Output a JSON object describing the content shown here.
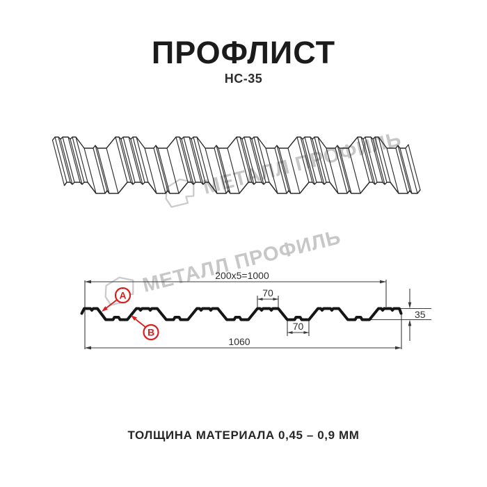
{
  "header": {
    "title": "ПРОФЛИСТ",
    "subtitle": "НС-35"
  },
  "watermark": {
    "text": "МЕТАЛЛ ПРОФИЛЬ",
    "color": "#c7c7c7"
  },
  "section": {
    "dims": {
      "working_width": "200x5=1000",
      "overall_width": "1060",
      "rib_top_width": "70",
      "rib_bottom_width": "70",
      "profile_height": "35"
    },
    "callouts": {
      "a": "A",
      "b": "B"
    },
    "accent_red": "#d81e1e",
    "profile_line_color": "#161616",
    "dim_line_color": "#3a3a3a"
  },
  "footer": {
    "thickness_note": "ТОЛЩИНА МАТЕРИАЛА 0,45 – 0,9 ММ"
  }
}
